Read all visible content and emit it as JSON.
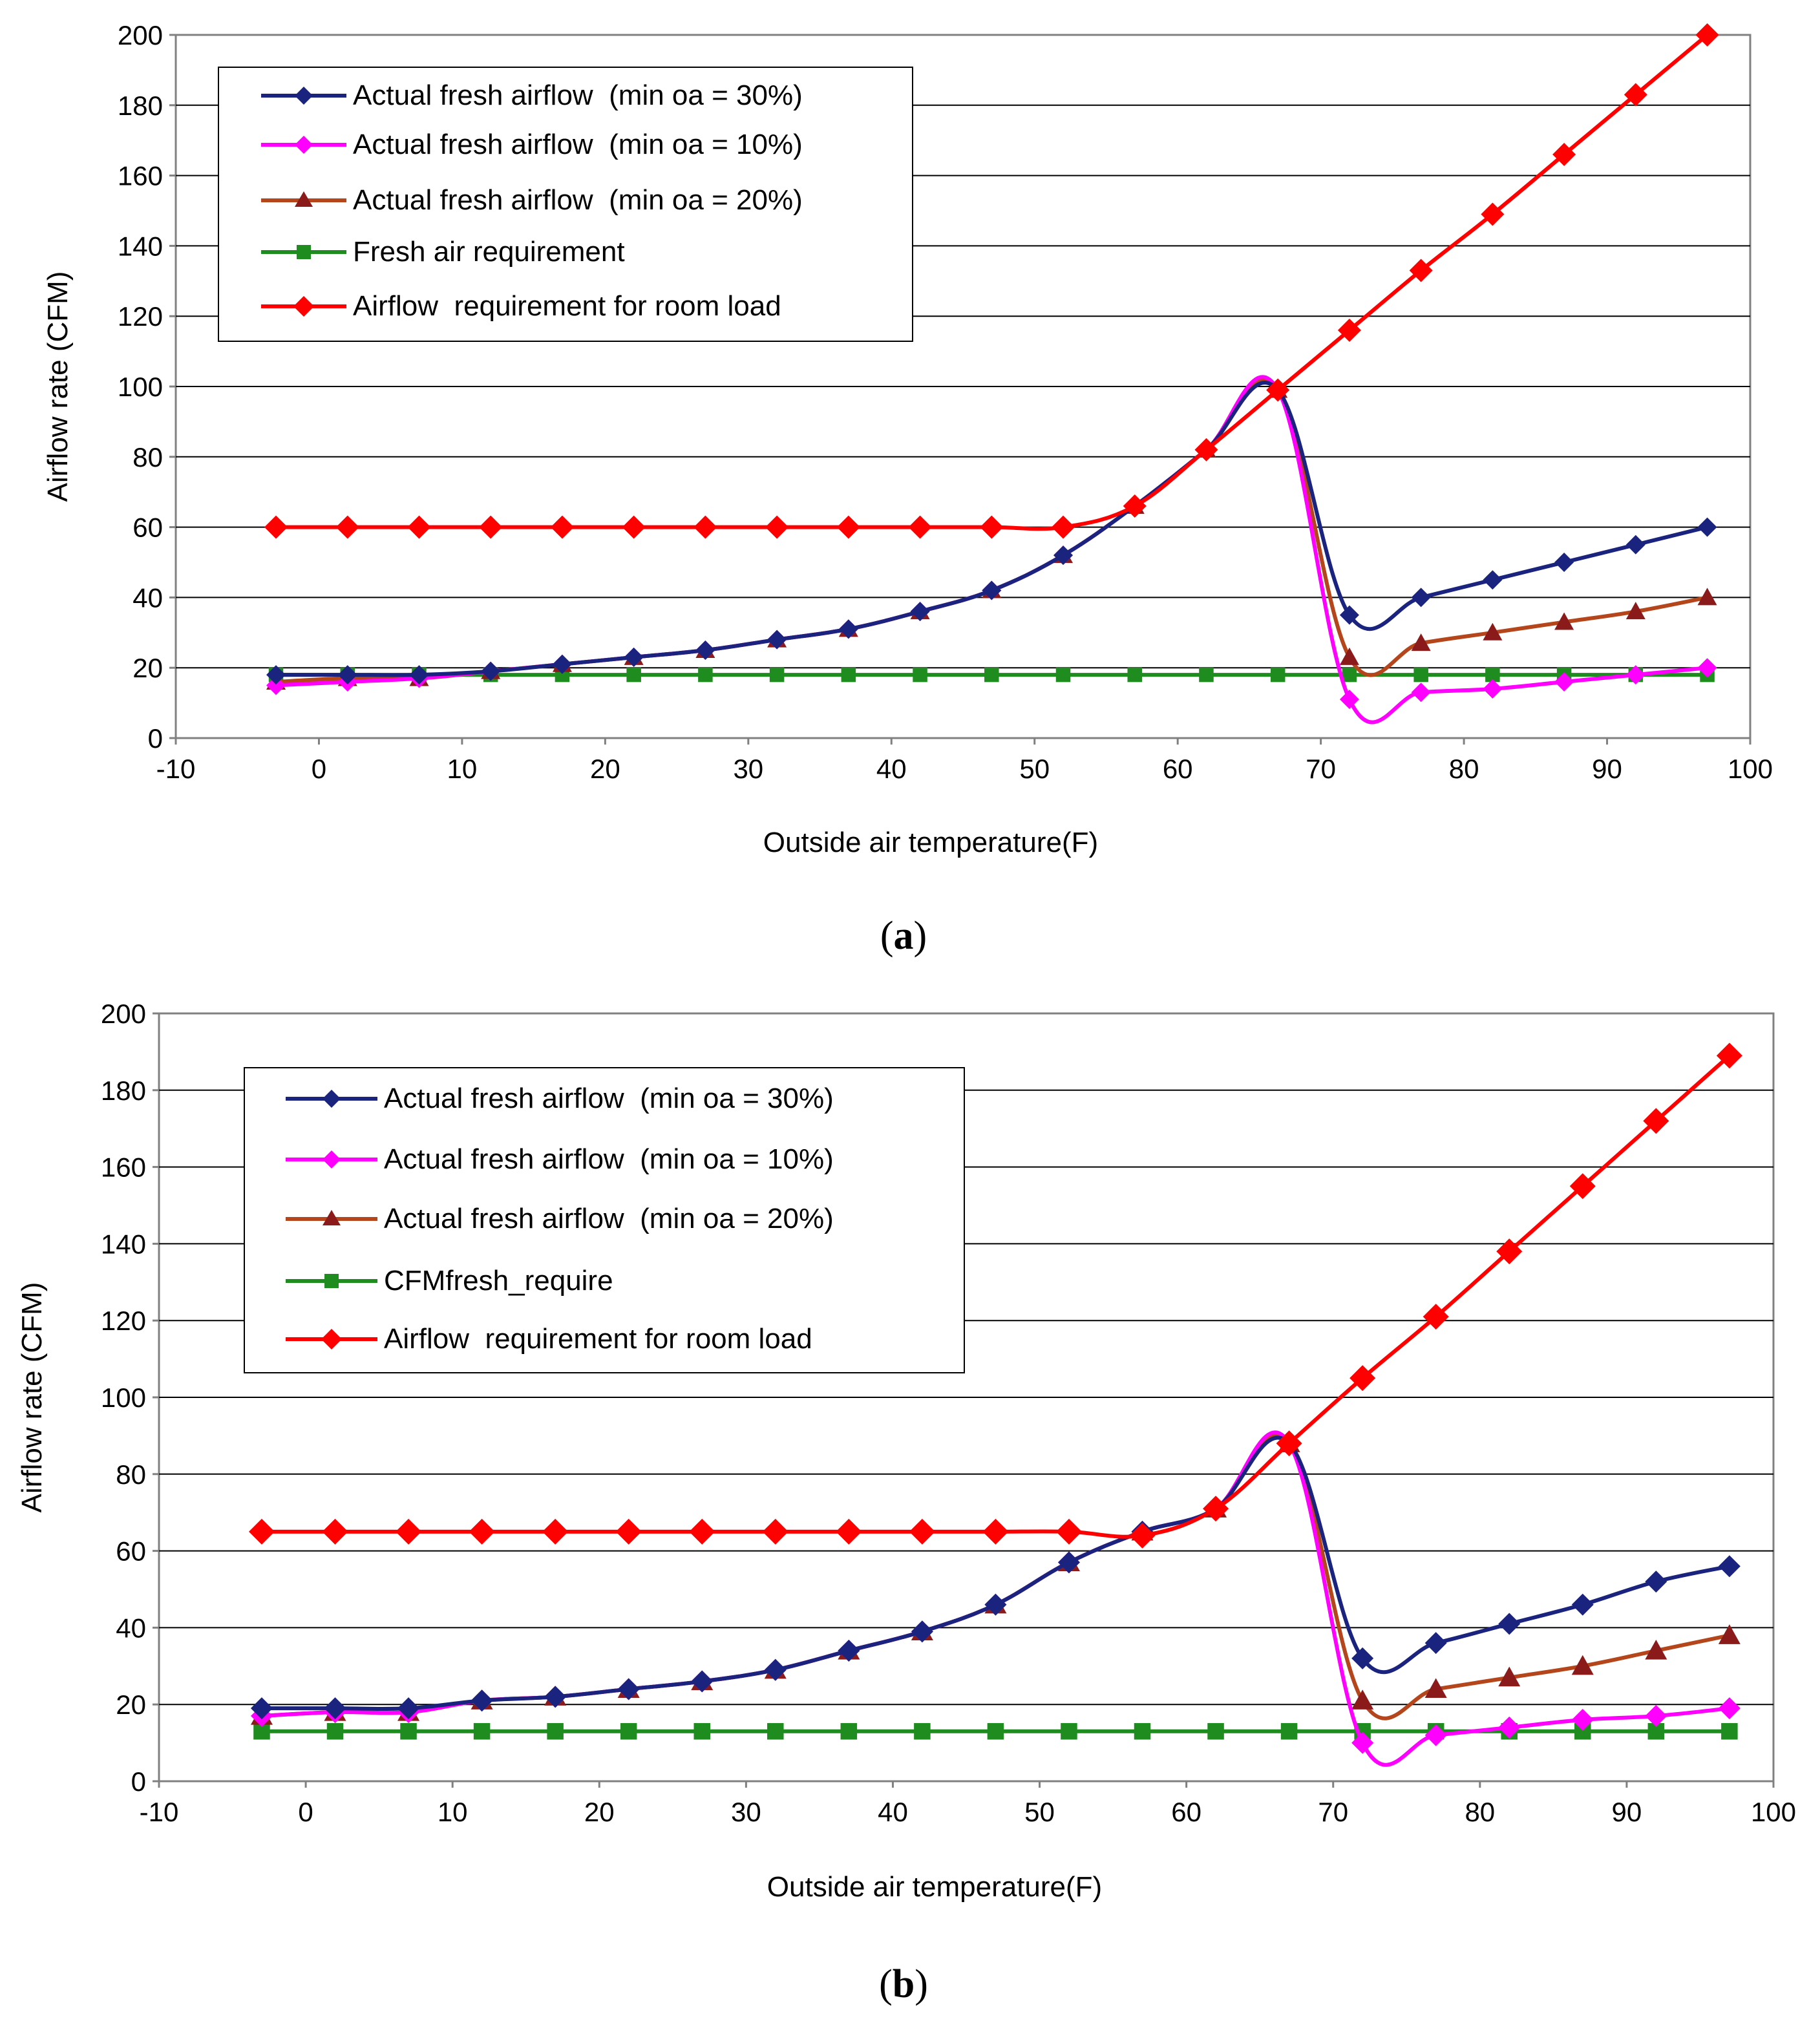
{
  "chart_data": [
    {
      "type": "line",
      "panel_label": "a",
      "xlabel": "Outside air temperature(F)",
      "ylabel": "Airflow rate (CFM)",
      "xlim": [
        -10,
        100
      ],
      "ylim": [
        0,
        200
      ],
      "xticks": [
        "-10",
        "0",
        "10",
        "20",
        "30",
        "40",
        "50",
        "60",
        "70",
        "80",
        "90",
        "100"
      ],
      "yticks": [
        "0",
        "20",
        "40",
        "60",
        "80",
        "100",
        "120",
        "140",
        "160",
        "180",
        "200"
      ],
      "x": [
        -3,
        2,
        7,
        12,
        17,
        22,
        27,
        32,
        37,
        42,
        47,
        52,
        57,
        62,
        67,
        72,
        77,
        82,
        87,
        92,
        97
      ],
      "legend_position": "top-left",
      "series": [
        {
          "name": "Actual fresh airflow  (min oa = 30%)",
          "color": "#1a237e",
          "marker": "diamond",
          "values": [
            18,
            18,
            18,
            19,
            21,
            23,
            25,
            28,
            31,
            36,
            42,
            52,
            66,
            82,
            99,
            35,
            40,
            45,
            50,
            55,
            60
          ]
        },
        {
          "name": "Actual fresh airflow  (min oa = 10%)",
          "color": "#ff00ff",
          "marker": "diamond",
          "values": [
            15,
            16,
            17,
            19,
            21,
            23,
            25,
            28,
            31,
            36,
            42,
            52,
            66,
            82,
            99,
            11,
            13,
            14,
            16,
            18,
            20
          ]
        },
        {
          "name": "Actual fresh airflow  (min oa = 20%)",
          "color": "#b5451b",
          "marker": "triangle",
          "marker_color": "#8b1a1a",
          "values": [
            16,
            17,
            17,
            19,
            21,
            23,
            25,
            28,
            31,
            36,
            42,
            52,
            66,
            82,
            99,
            23,
            27,
            30,
            33,
            36,
            40
          ]
        },
        {
          "name": "Fresh air requirement",
          "color": "#1e8c1e",
          "marker": "square",
          "values": [
            18,
            18,
            18,
            18,
            18,
            18,
            18,
            18,
            18,
            18,
            18,
            18,
            18,
            18,
            18,
            18,
            18,
            18,
            18,
            18,
            18
          ]
        },
        {
          "name": "Airflow  requirement for room load",
          "color": "#ff0000",
          "marker": "diamond",
          "values": [
            60,
            60,
            60,
            60,
            60,
            60,
            60,
            60,
            60,
            60,
            60,
            60,
            66,
            82,
            99,
            116,
            133,
            149,
            166,
            183,
            200
          ]
        }
      ]
    },
    {
      "type": "line",
      "panel_label": "b",
      "xlabel": "Outside air temperature(F)",
      "ylabel": "Airflow rate (CFM)",
      "xlim": [
        -10,
        100
      ],
      "ylim": [
        0,
        200
      ],
      "xticks": [
        "-10",
        "0",
        "10",
        "20",
        "30",
        "40",
        "50",
        "60",
        "70",
        "80",
        "90",
        "100"
      ],
      "yticks": [
        "0",
        "20",
        "40",
        "60",
        "80",
        "100",
        "120",
        "140",
        "160",
        "180",
        "200"
      ],
      "x": [
        -3,
        2,
        7,
        12,
        17,
        22,
        27,
        32,
        37,
        42,
        47,
        52,
        57,
        62,
        67,
        72,
        77,
        82,
        87,
        92,
        97
      ],
      "legend_position": "top-left",
      "series": [
        {
          "name": "Actual fresh airflow  (min oa = 30%)",
          "color": "#1a237e",
          "marker": "diamond",
          "values": [
            19,
            19,
            19,
            21,
            22,
            24,
            26,
            29,
            34,
            39,
            46,
            57,
            65,
            71,
            88,
            32,
            36,
            41,
            46,
            52,
            56
          ]
        },
        {
          "name": "Actual fresh airflow  (min oa = 10%)",
          "color": "#ff00ff",
          "marker": "diamond",
          "values": [
            17,
            18,
            18,
            21,
            22,
            24,
            26,
            29,
            34,
            39,
            46,
            57,
            65,
            71,
            88,
            10,
            12,
            14,
            16,
            17,
            19
          ]
        },
        {
          "name": "Actual fresh airflow  (min oa = 20%)",
          "color": "#b5451b",
          "marker": "triangle",
          "marker_color": "#8b1a1a",
          "values": [
            17,
            18,
            18,
            21,
            22,
            24,
            26,
            29,
            34,
            39,
            46,
            57,
            65,
            71,
            88,
            21,
            24,
            27,
            30,
            34,
            38
          ]
        },
        {
          "name": "CFMfresh_require",
          "color": "#1e8c1e",
          "marker": "square",
          "values": [
            13,
            13,
            13,
            13,
            13,
            13,
            13,
            13,
            13,
            13,
            13,
            13,
            13,
            13,
            13,
            13,
            13,
            13,
            13,
            13,
            13
          ]
        },
        {
          "name": "Airflow  requirement for room load",
          "color": "#ff0000",
          "marker": "diamond",
          "values": [
            65,
            65,
            65,
            65,
            65,
            65,
            65,
            65,
            65,
            65,
            65,
            65,
            64,
            71,
            88,
            105,
            121,
            138,
            155,
            172,
            189
          ]
        }
      ]
    }
  ]
}
